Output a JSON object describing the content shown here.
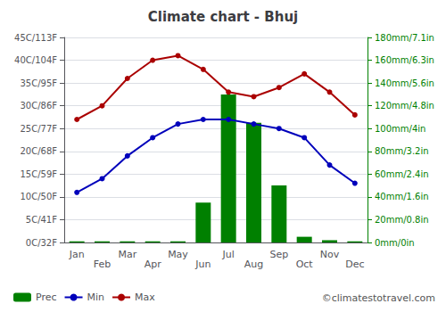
{
  "chart_data": {
    "type": "combo",
    "title": "Climate chart - Bhuj",
    "categories": [
      "Jan",
      "Feb",
      "Mar",
      "Apr",
      "May",
      "Jun",
      "Jul",
      "Aug",
      "Sep",
      "Oct",
      "Nov",
      "Dec"
    ],
    "series": [
      {
        "name": "Prec",
        "type": "bar",
        "axis": "y2",
        "color": "#008000",
        "values": [
          1,
          1,
          1,
          1,
          1,
          35,
          130,
          105,
          50,
          5,
          2,
          1
        ]
      },
      {
        "name": "Min",
        "type": "line",
        "color": "#0000bb",
        "marker": "circle",
        "line_style": "solid",
        "values": [
          11,
          14,
          19,
          23,
          26,
          27,
          27,
          26,
          25,
          23,
          17,
          13
        ]
      },
      {
        "name": "Max",
        "type": "line",
        "color": "#aa0000",
        "marker": "circle",
        "line_style": "solid",
        "values": [
          27,
          30,
          36,
          40,
          41,
          38,
          33,
          32,
          34,
          37,
          33,
          28
        ]
      }
    ],
    "ylim": [
      0,
      45
    ],
    "yticks": [
      {
        "value": 0,
        "label": "0C/32F"
      },
      {
        "value": 5,
        "label": "5C/41F"
      },
      {
        "value": 10,
        "label": "10C/50F"
      },
      {
        "value": 15,
        "label": "15C/59F"
      },
      {
        "value": 20,
        "label": "20C/68F"
      },
      {
        "value": 25,
        "label": "25C/77F"
      },
      {
        "value": 30,
        "label": "30C/86F"
      },
      {
        "value": 35,
        "label": "35C/95F"
      },
      {
        "value": 40,
        "label": "40C/104F"
      },
      {
        "value": 45,
        "label": "45C/113F"
      }
    ],
    "y2lim": [
      0,
      180
    ],
    "y2ticks": [
      {
        "value": 0,
        "label": "0mm/0in"
      },
      {
        "value": 20,
        "label": "20mm/0.8in"
      },
      {
        "value": 40,
        "label": "40mm/1.6in"
      },
      {
        "value": 60,
        "label": "60mm/2.4in"
      },
      {
        "value": 80,
        "label": "80mm/3.2in"
      },
      {
        "value": 100,
        "label": "100mm/4in"
      },
      {
        "value": 120,
        "label": "120mm/4.8in"
      },
      {
        "value": 140,
        "label": "140mm/5.6in"
      },
      {
        "value": 160,
        "label": "160mm/6.3in"
      },
      {
        "value": 180,
        "label": "180mm/7.1in"
      }
    ],
    "grid": true,
    "legend": "bottom",
    "annotations": [
      "©climatestotravel.com"
    ]
  }
}
